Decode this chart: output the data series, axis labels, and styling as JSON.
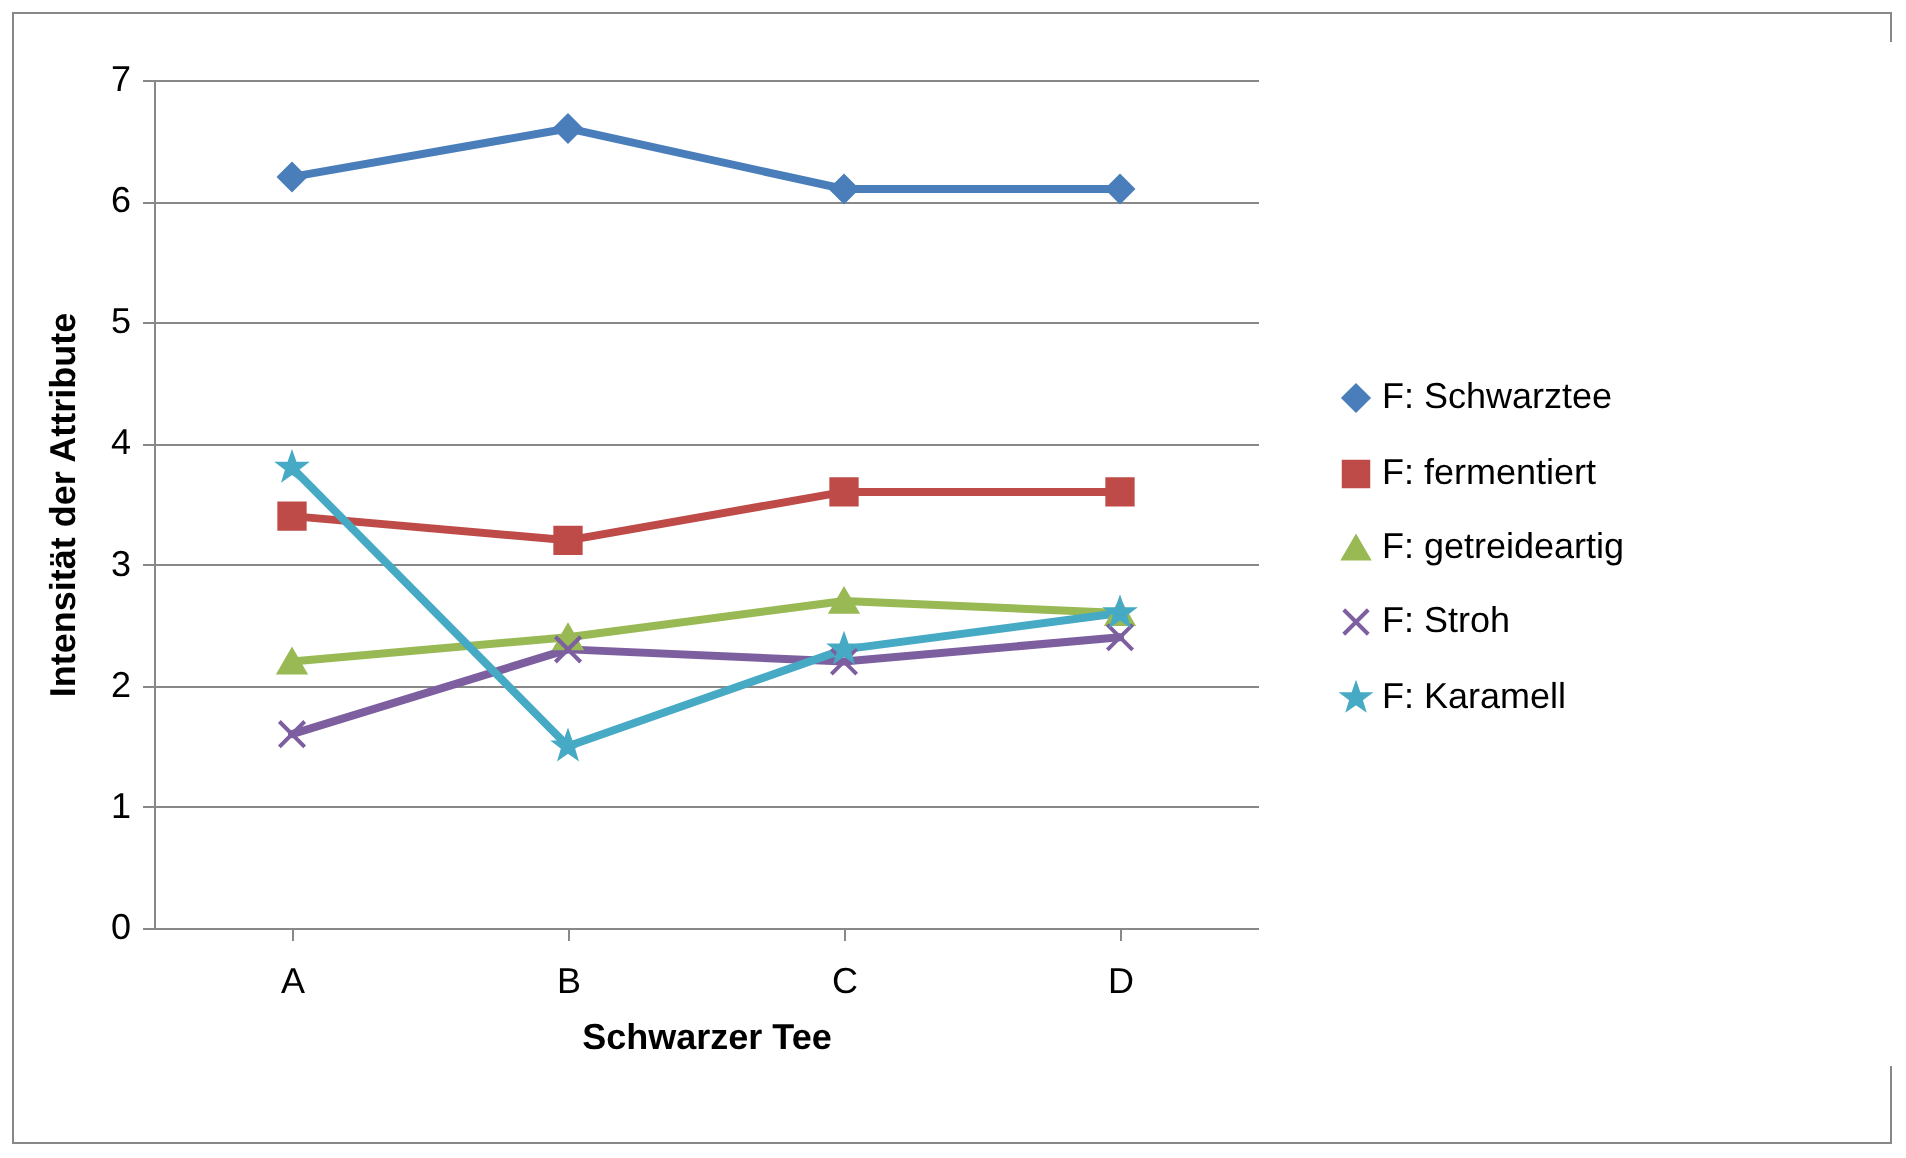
{
  "chart_data": {
    "type": "line",
    "xlabel": "Schwarzer Tee",
    "ylabel": "Intensität der Attribute",
    "categories": [
      "A",
      "B",
      "C",
      "D"
    ],
    "series": [
      {
        "name": "F: Schwarztee",
        "color": "#4a7ebb",
        "marker": "diamond",
        "values": [
          6.2,
          6.6,
          6.1,
          6.1
        ]
      },
      {
        "name": "F: fermentiert",
        "color": "#be4b48",
        "marker": "square",
        "values": [
          3.4,
          3.2,
          3.6,
          3.6
        ]
      },
      {
        "name": "F: getreideartig",
        "color": "#98b954",
        "marker": "triangle",
        "values": [
          2.2,
          2.4,
          2.7,
          2.6
        ]
      },
      {
        "name": "F: Stroh",
        "color": "#7d5fa0",
        "marker": "cross",
        "values": [
          1.6,
          2.3,
          2.2,
          2.4
        ]
      },
      {
        "name": "F: Karamell",
        "color": "#46aac5",
        "marker": "star",
        "values": [
          3.8,
          1.5,
          2.3,
          2.6
        ]
      }
    ],
    "ylim": [
      0,
      7
    ],
    "yticks": [
      0,
      1,
      2,
      3,
      4,
      5,
      6,
      7
    ],
    "grid": "y",
    "legend": "right",
    "line_style": "solid"
  }
}
